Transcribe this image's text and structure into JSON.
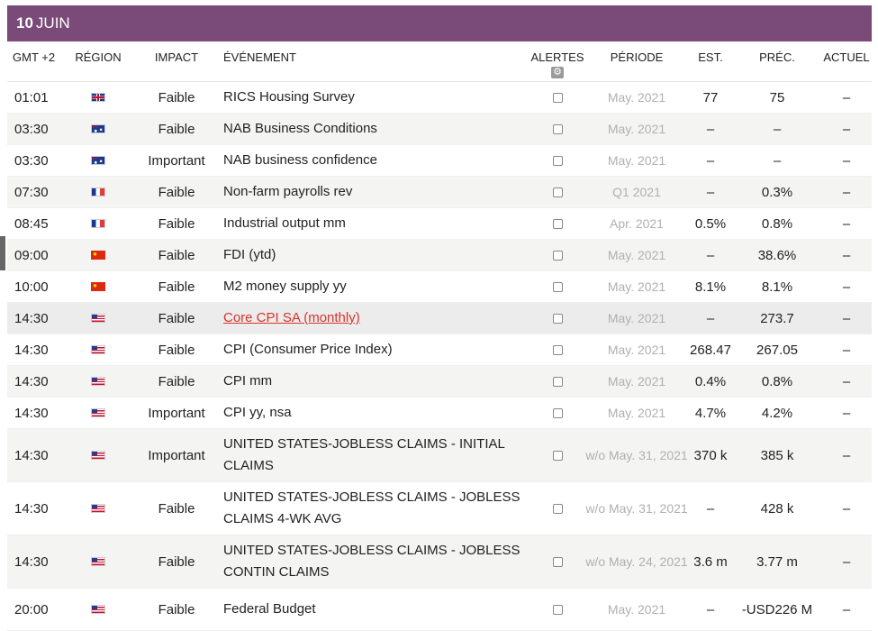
{
  "day": {
    "number": "10",
    "month": "JUIN"
  },
  "columns": {
    "time": "GMT +2",
    "region": "RÉGION",
    "impact": "IMPACT",
    "event": "ÉVÉNEMENT",
    "alerts": "ALERTES",
    "period": "PÉRIODE",
    "est": "EST.",
    "prev": "PRÉC.",
    "actual": "ACTUEL"
  },
  "colors": {
    "header_bg": "#7a4a78",
    "link": "#d9322b"
  },
  "rows": [
    {
      "time": "01:01",
      "flag": "gb",
      "flag_icon": "flag-uk-icon",
      "impact": "Faible",
      "event": "RICS Housing Survey",
      "period": "May. 2021",
      "est": "77",
      "prev": "75",
      "actual": "–"
    },
    {
      "time": "03:30",
      "flag": "au",
      "flag_icon": "flag-australia-icon",
      "impact": "Faible",
      "event": "NAB Business Conditions",
      "period": "May. 2021",
      "est": "–",
      "prev": "–",
      "actual": "–"
    },
    {
      "time": "03:30",
      "flag": "au",
      "flag_icon": "flag-australia-icon",
      "impact": "Important",
      "event": "NAB business confidence",
      "period": "May. 2021",
      "est": "–",
      "prev": "–",
      "actual": "–"
    },
    {
      "time": "07:30",
      "flag": "fr",
      "flag_icon": "flag-france-icon",
      "impact": "Faible",
      "event": "Non-farm payrolls rev",
      "period": "Q1 2021",
      "est": "–",
      "prev": "0.3%",
      "actual": "–"
    },
    {
      "time": "08:45",
      "flag": "fr",
      "flag_icon": "flag-france-icon",
      "impact": "Faible",
      "event": "Industrial output mm",
      "period": "Apr. 2021",
      "est": "0.5%",
      "prev": "0.8%",
      "actual": "–"
    },
    {
      "time": "09:00",
      "flag": "cn",
      "flag_icon": "flag-china-icon",
      "impact": "Faible",
      "event": "FDI (ytd)",
      "period": "May. 2021",
      "est": "–",
      "prev": "38.6%",
      "actual": "–"
    },
    {
      "time": "10:00",
      "flag": "cn",
      "flag_icon": "flag-china-icon",
      "impact": "Faible",
      "event": "M2 money supply yy",
      "period": "May. 2021",
      "est": "8.1%",
      "prev": "8.1%",
      "actual": "–"
    },
    {
      "time": "14:30",
      "flag": "us",
      "flag_icon": "flag-usa-icon",
      "impact": "Faible",
      "event": "Core CPI SA (monthly)",
      "period": "May. 2021",
      "est": "–",
      "prev": "273.7",
      "actual": "–"
    },
    {
      "time": "14:30",
      "flag": "us",
      "flag_icon": "flag-usa-icon",
      "impact": "Faible",
      "event": "CPI (Consumer Price Index)",
      "period": "May. 2021",
      "est": "268.47",
      "prev": "267.05",
      "actual": "–"
    },
    {
      "time": "14:30",
      "flag": "us",
      "flag_icon": "flag-usa-icon",
      "impact": "Faible",
      "event": "CPI mm",
      "period": "May. 2021",
      "est": "0.4%",
      "prev": "0.8%",
      "actual": "–"
    },
    {
      "time": "14:30",
      "flag": "us",
      "flag_icon": "flag-usa-icon",
      "impact": "Important",
      "event": "CPI yy, nsa",
      "period": "May. 2021",
      "est": "4.7%",
      "prev": "4.2%",
      "actual": "–"
    },
    {
      "time": "14:30",
      "flag": "us",
      "flag_icon": "flag-usa-icon",
      "impact": "Important",
      "event": "UNITED STATES-JOBLESS CLAIMS - INITIAL CLAIMS",
      "period": "w/o May. 31, 2021",
      "est": "370 k",
      "prev": "385 k",
      "actual": "–"
    },
    {
      "time": "14:30",
      "flag": "us",
      "flag_icon": "flag-usa-icon",
      "impact": "Faible",
      "event": "UNITED STATES-JOBLESS CLAIMS - JOBLESS CLAIMS 4-WK AVG",
      "period": "w/o May. 31, 2021",
      "est": "–",
      "prev": "428 k",
      "actual": "–"
    },
    {
      "time": "14:30",
      "flag": "us",
      "flag_icon": "flag-usa-icon",
      "impact": "Faible",
      "event": "UNITED STATES-JOBLESS CLAIMS - JOBLESS CONTIN CLAIMS",
      "period": "w/o May. 24, 2021",
      "est": "3.6 m",
      "prev": "3.77 m",
      "actual": "–"
    },
    {
      "time": "20:00",
      "flag": "us",
      "flag_icon": "flag-usa-icon",
      "impact": "Faible",
      "event": "Federal Budget",
      "period": "May. 2021",
      "est": "–",
      "prev": "-USD226 M",
      "actual": "–"
    }
  ]
}
